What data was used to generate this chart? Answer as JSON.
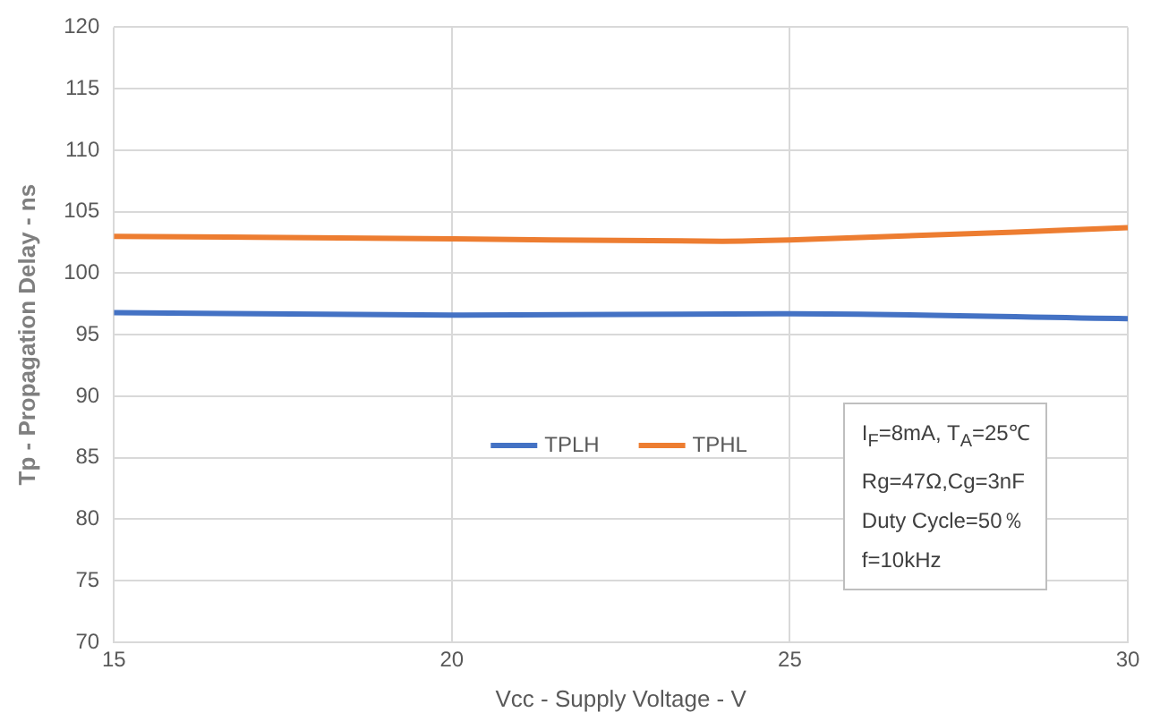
{
  "chart_data": {
    "type": "line",
    "xlabel": "Vcc - Supply Voltage - V",
    "ylabel": "Tp - Propagation Delay - ns",
    "x": [
      15,
      20,
      25,
      30
    ],
    "series": [
      {
        "name": "TPLH",
        "color": "#4472c4",
        "values": [
          96.8,
          96.6,
          96.7,
          96.3
        ]
      },
      {
        "name": "TPHL",
        "color": "#ed7d31",
        "x": [
          15,
          20,
          24,
          25,
          30
        ],
        "values": [
          103,
          102.8,
          102.6,
          102.7,
          103.7
        ]
      }
    ],
    "xlim": [
      15,
      30
    ],
    "xticks": [
      15,
      20,
      25,
      30
    ],
    "ylim": [
      70,
      120
    ],
    "yticks": [
      70,
      75,
      80,
      85,
      90,
      95,
      100,
      105,
      110,
      115,
      120
    ],
    "grid": true,
    "legend": "center",
    "marker": "none",
    "line_style": "solid",
    "annotations": [
      "I$_{F}$=8mA, T$_{A}$=25℃",
      "Rg=47Ω,Cg=3nF",
      "Duty Cycle=50％",
      "f=10kHz"
    ]
  }
}
